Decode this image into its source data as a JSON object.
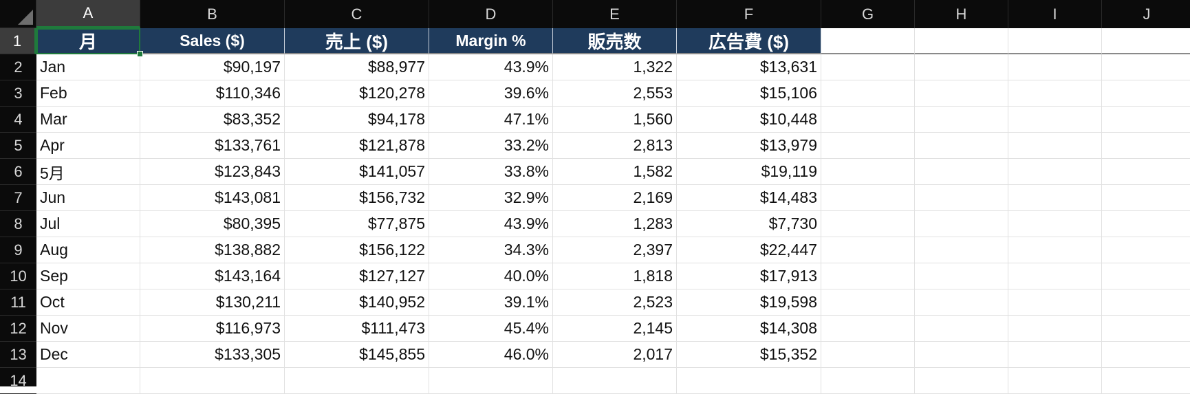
{
  "columns": [
    "A",
    "B",
    "C",
    "D",
    "E",
    "F",
    "G",
    "H",
    "I",
    "J"
  ],
  "rows": [
    "1",
    "2",
    "3",
    "4",
    "5",
    "6",
    "7",
    "8",
    "9",
    "10",
    "11",
    "12",
    "13",
    "14"
  ],
  "headers": [
    "月",
    "Sales ($)",
    "売上 ($)",
    "Margin %",
    "販売数",
    "広告費 ($)"
  ],
  "data": [
    [
      "Jan",
      "$90,197",
      "$88,977",
      "43.9%",
      "1,322",
      "$13,631"
    ],
    [
      "Feb",
      "$110,346",
      "$120,278",
      "39.6%",
      "2,553",
      "$15,106"
    ],
    [
      "Mar",
      "$83,352",
      "$94,178",
      "47.1%",
      "1,560",
      "$10,448"
    ],
    [
      "Apr",
      "$133,761",
      "$121,878",
      "33.2%",
      "2,813",
      "$13,979"
    ],
    [
      "5月",
      "$123,843",
      "$141,057",
      "33.8%",
      "1,582",
      "$19,119"
    ],
    [
      "Jun",
      "$143,081",
      "$156,732",
      "32.9%",
      "2,169",
      "$14,483"
    ],
    [
      "Jul",
      "$80,395",
      "$77,875",
      "43.9%",
      "1,283",
      "$7,730"
    ],
    [
      "Aug",
      "$138,882",
      "$156,122",
      "34.3%",
      "2,397",
      "$22,447"
    ],
    [
      "Sep",
      "$143,164",
      "$127,127",
      "40.0%",
      "1,818",
      "$17,913"
    ],
    [
      "Oct",
      "$130,211",
      "$140,952",
      "39.1%",
      "2,523",
      "$19,598"
    ],
    [
      "Nov",
      "$116,973",
      "$111,473",
      "45.4%",
      "2,145",
      "$14,308"
    ],
    [
      "Dec",
      "$133,305",
      "$145,855",
      "46.0%",
      "2,017",
      "$15,352"
    ]
  ],
  "selection": {
    "cell": "A1"
  },
  "colors": {
    "header_fill": "#1f3b5c",
    "selection": "#1f7a3c"
  }
}
